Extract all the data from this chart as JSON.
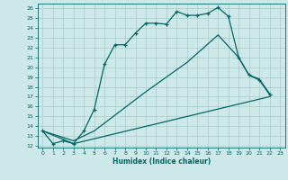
{
  "xlabel": "Humidex (Indice chaleur)",
  "bg_color": "#cce8e8",
  "line_color": "#006666",
  "grid_color": "#aacccc",
  "xlim": [
    -0.5,
    23.5
  ],
  "ylim": [
    11.8,
    26.5
  ],
  "xticks": [
    0,
    1,
    2,
    3,
    4,
    5,
    6,
    7,
    8,
    9,
    10,
    11,
    12,
    13,
    14,
    15,
    16,
    17,
    18,
    19,
    20,
    21,
    22,
    23
  ],
  "yticks": [
    12,
    13,
    14,
    15,
    16,
    17,
    18,
    19,
    20,
    21,
    22,
    23,
    24,
    25,
    26
  ],
  "line1_x": [
    0,
    1,
    2,
    3,
    4,
    5,
    6,
    7,
    8,
    9,
    10,
    11,
    12,
    13,
    14,
    15,
    16,
    17,
    18,
    19,
    20,
    21,
    22
  ],
  "line1_y": [
    13.5,
    12.2,
    12.5,
    12.2,
    13.5,
    15.7,
    20.3,
    22.3,
    22.3,
    23.5,
    24.5,
    24.5,
    24.4,
    25.7,
    25.3,
    25.3,
    25.5,
    26.1,
    25.2,
    21.0,
    19.2,
    18.7,
    17.2
  ],
  "line2_x": [
    0,
    3,
    5,
    10,
    14,
    17,
    19,
    20,
    21,
    22
  ],
  "line2_y": [
    13.5,
    12.5,
    13.5,
    17.5,
    20.5,
    23.3,
    21.0,
    19.2,
    18.8,
    17.3
  ],
  "line3_x": [
    0,
    3,
    22
  ],
  "line3_y": [
    13.5,
    12.2,
    17.0
  ]
}
